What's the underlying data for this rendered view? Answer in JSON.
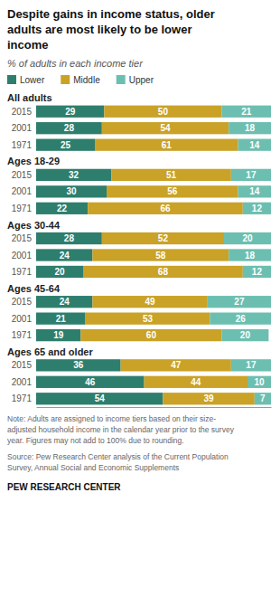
{
  "chart_data": {
    "type": "bar",
    "orientation": "horizontal",
    "stacked": true,
    "data_labels": true,
    "tick_labels": false,
    "grid": false,
    "legend": "top",
    "title": "Despite gains in income status, older\nadults are most likely to be lower\nincome",
    "subtitle": "% of adults in each income tier",
    "categories": [
      "2015",
      "2001",
      "1971",
      "2015",
      "2001",
      "1971",
      "2015",
      "2001",
      "1971",
      "2015",
      "2001",
      "1971",
      "2015",
      "2001",
      "1971"
    ],
    "group_labels": [
      "All adults",
      null,
      null,
      "Ages 18-29",
      null,
      null,
      "Ages 30-44",
      null,
      null,
      "Ages 45-64",
      null,
      null,
      "Ages 65 and older",
      null,
      null
    ],
    "series": [
      {
        "name": "Lower",
        "color": "#2e7e6e",
        "values": [
          29,
          28,
          25,
          32,
          30,
          22,
          28,
          24,
          20,
          24,
          21,
          19,
          36,
          46,
          54
        ]
      },
      {
        "name": "Middle",
        "color": "#c9a227",
        "values": [
          50,
          54,
          61,
          51,
          56,
          66,
          52,
          58,
          68,
          49,
          53,
          60,
          47,
          44,
          39
        ]
      },
      {
        "name": "Upper",
        "color": "#6cbfb0",
        "values": [
          21,
          18,
          14,
          17,
          14,
          12,
          20,
          18,
          12,
          27,
          26,
          20,
          17,
          10,
          7
        ]
      }
    ],
    "xlim": [
      0,
      100
    ],
    "note": "Note: Adults are assigned to income tiers based on their size-\nadjusted household income in the calendar year prior to the survey\nyear. Figures may not add to 100% due to rounding.",
    "source": "Source: Pew Research Center analysis of the Current Population\nSurvey, Annual Social and Economic Supplements",
    "annotations": [
      "PEW RESEARCH CENTER"
    ]
  }
}
